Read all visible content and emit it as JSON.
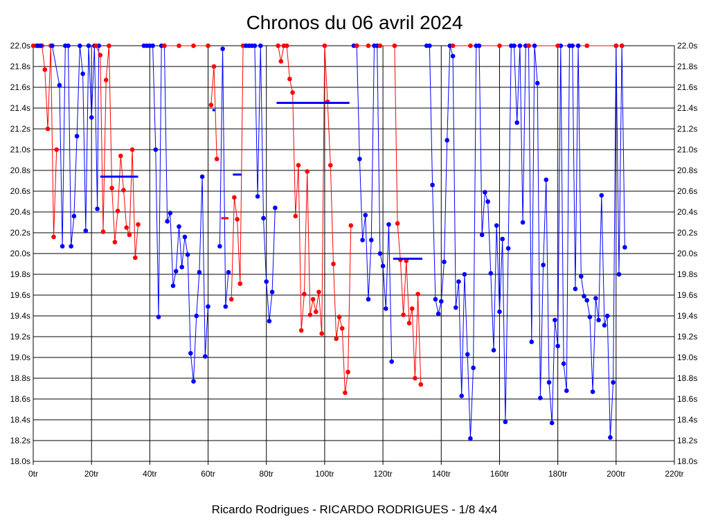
{
  "chart_data": {
    "type": "line",
    "title": "Chronos du 06 avril 2024",
    "subtitle": "Ricardo Rodrigues - RICARDO RODRIGUES - 1/8 4x4",
    "xlabel": "",
    "ylabel": "",
    "xlim": [
      0,
      220
    ],
    "ylim": [
      18.0,
      22.0
    ],
    "x_ticks": [
      {
        "value": 0,
        "label": "0tr"
      },
      {
        "value": 20,
        "label": "20tr"
      },
      {
        "value": 40,
        "label": "40tr"
      },
      {
        "value": 60,
        "label": "60tr"
      },
      {
        "value": 80,
        "label": "80tr"
      },
      {
        "value": 100,
        "label": "100tr"
      },
      {
        "value": 120,
        "label": "120tr"
      },
      {
        "value": 140,
        "label": "140tr"
      },
      {
        "value": 160,
        "label": "160tr"
      },
      {
        "value": 180,
        "label": "180tr"
      },
      {
        "value": 200,
        "label": "200tr"
      },
      {
        "value": 220,
        "label": "220tr"
      }
    ],
    "y_ticks": [
      {
        "value": 18.0,
        "label": "18.0s"
      },
      {
        "value": 18.2,
        "label": "18.2s"
      },
      {
        "value": 18.4,
        "label": "18.4s"
      },
      {
        "value": 18.6,
        "label": "18.6s"
      },
      {
        "value": 18.8,
        "label": "18.8s"
      },
      {
        "value": 19.0,
        "label": "19.0s"
      },
      {
        "value": 19.2,
        "label": "19.2s"
      },
      {
        "value": 19.4,
        "label": "19.4s"
      },
      {
        "value": 19.6,
        "label": "19.6s"
      },
      {
        "value": 19.8,
        "label": "19.8s"
      },
      {
        "value": 20.0,
        "label": "20.0s"
      },
      {
        "value": 20.2,
        "label": "20.2s"
      },
      {
        "value": 20.4,
        "label": "20.4s"
      },
      {
        "value": 20.6,
        "label": "20.6s"
      },
      {
        "value": 20.8,
        "label": "20.8s"
      },
      {
        "value": 21.0,
        "label": "21.0s"
      },
      {
        "value": 21.2,
        "label": "21.2s"
      },
      {
        "value": 21.4,
        "label": "21.4s"
      },
      {
        "value": 21.6,
        "label": "21.6s"
      },
      {
        "value": 21.8,
        "label": "21.8s"
      },
      {
        "value": 22.0,
        "label": "22.0s"
      }
    ],
    "grid": true,
    "colors": {
      "red": "#ff0000",
      "blue": "#0000ff",
      "grid": "#000000"
    },
    "segments": [
      {
        "color": "red",
        "points": [
          [
            0,
            22.0
          ],
          [
            1,
            22.0
          ],
          [
            2,
            22.0
          ],
          [
            3,
            22.0
          ],
          [
            4,
            21.77
          ],
          [
            5,
            21.2
          ],
          [
            6,
            22.0
          ],
          [
            7,
            20.16
          ],
          [
            8,
            21.0
          ]
        ]
      },
      {
        "color": "blue",
        "points": [
          [
            1.5,
            22.0
          ],
          [
            2.5,
            22.0
          ],
          [
            6.5,
            22.0
          ],
          [
            9,
            21.62
          ],
          [
            10,
            20.07
          ],
          [
            11,
            22.0
          ],
          [
            12,
            22.0
          ],
          [
            13,
            20.07
          ],
          [
            14,
            20.36
          ],
          [
            15,
            21.13
          ],
          [
            16,
            22.0
          ],
          [
            17,
            21.73
          ],
          [
            18,
            20.22
          ],
          [
            19,
            22.0
          ],
          [
            20,
            21.31
          ],
          [
            21,
            22.0
          ],
          [
            22,
            20.43
          ],
          [
            22.5,
            22.0
          ]
        ]
      },
      {
        "color": "red",
        "points": [
          [
            21.5,
            22.0
          ],
          [
            23,
            21.91
          ],
          [
            24,
            20.21
          ],
          [
            25,
            21.67
          ],
          [
            26,
            22.0
          ],
          [
            27,
            20.63
          ],
          [
            28,
            20.11
          ],
          [
            29,
            20.41
          ],
          [
            30,
            20.94
          ],
          [
            31,
            20.61
          ],
          [
            32,
            20.25
          ],
          [
            33,
            20.18
          ],
          [
            34,
            21.0
          ],
          [
            35,
            19.96
          ],
          [
            36,
            20.28
          ]
        ]
      },
      {
        "color": "blue",
        "points": [
          [
            38,
            22.0
          ],
          [
            39,
            22.0
          ],
          [
            40,
            22.0
          ],
          [
            41,
            22.0
          ],
          [
            42,
            21.0
          ],
          [
            43,
            19.39
          ],
          [
            44,
            22.0
          ],
          [
            45,
            22.0
          ],
          [
            46,
            20.31
          ],
          [
            47,
            20.39
          ],
          [
            48,
            19.69
          ],
          [
            49,
            19.83
          ],
          [
            50,
            20.26
          ],
          [
            51,
            19.87
          ],
          [
            52,
            20.16
          ],
          [
            53,
            19.99
          ],
          [
            54,
            19.04
          ],
          [
            55,
            18.77
          ],
          [
            56,
            19.4
          ],
          [
            57,
            19.82
          ],
          [
            58,
            20.74
          ],
          [
            59,
            19.01
          ],
          [
            60,
            19.49
          ]
        ]
      },
      {
        "color": "red",
        "points": [
          [
            45,
            22.0
          ],
          [
            50,
            22.0
          ],
          [
            55,
            22.0
          ],
          [
            60,
            22.0
          ]
        ]
      },
      {
        "color": "red",
        "points": [
          [
            61,
            21.43
          ],
          [
            62,
            21.8
          ],
          [
            63,
            20.91
          ]
        ]
      },
      {
        "color": "blue",
        "points": [
          [
            64,
            20.07
          ],
          [
            65,
            21.97
          ],
          [
            66,
            19.49
          ],
          [
            67,
            19.82
          ]
        ]
      },
      {
        "color": "red",
        "points": [
          [
            68,
            19.56
          ],
          [
            69,
            20.54
          ],
          [
            70,
            20.33
          ],
          [
            71,
            19.71
          ],
          [
            72,
            22.0
          ],
          [
            73,
            22.0
          ]
        ]
      },
      {
        "color": "blue",
        "points": [
          [
            73,
            22.0
          ],
          [
            74,
            22.0
          ],
          [
            75,
            22.0
          ],
          [
            76,
            22.0
          ],
          [
            77,
            20.55
          ],
          [
            78,
            22.0
          ],
          [
            79,
            20.34
          ],
          [
            80,
            19.73
          ],
          [
            81,
            19.35
          ],
          [
            82,
            19.63
          ],
          [
            83,
            20.44
          ]
        ]
      },
      {
        "color": "red",
        "points": [
          [
            84,
            22.0
          ],
          [
            85,
            21.85
          ],
          [
            86,
            22.0
          ],
          [
            87,
            22.0
          ],
          [
            88,
            21.68
          ],
          [
            89,
            21.55
          ],
          [
            90,
            20.36
          ],
          [
            91,
            20.85
          ],
          [
            92,
            19.26
          ],
          [
            93,
            19.61
          ],
          [
            94,
            20.79
          ],
          [
            95,
            19.41
          ],
          [
            96,
            19.56
          ],
          [
            97,
            19.44
          ],
          [
            98,
            19.63
          ],
          [
            99,
            19.23
          ],
          [
            100,
            22.0
          ],
          [
            101,
            21.46
          ],
          [
            102,
            20.85
          ],
          [
            103,
            19.9
          ],
          [
            104,
            19.18
          ],
          [
            105,
            19.39
          ],
          [
            106,
            19.28
          ],
          [
            107,
            18.66
          ],
          [
            108,
            18.86
          ],
          [
            109,
            20.27
          ]
        ]
      },
      {
        "color": "blue",
        "points": [
          [
            110,
            22.0
          ],
          [
            111,
            22.0
          ],
          [
            112,
            20.91
          ],
          [
            113,
            20.13
          ],
          [
            114,
            20.37
          ],
          [
            115,
            19.56
          ],
          [
            116,
            20.13
          ],
          [
            117,
            22.0
          ],
          [
            118,
            22.0
          ],
          [
            119,
            20.0
          ],
          [
            120,
            19.88
          ],
          [
            121,
            19.47
          ],
          [
            122,
            20.28
          ],
          [
            123,
            18.96
          ]
        ]
      },
      {
        "color": "red",
        "points": [
          [
            111,
            22.0
          ],
          [
            115,
            22.0
          ],
          [
            119,
            22.0
          ],
          [
            124,
            22.0
          ],
          [
            125,
            20.29
          ],
          [
            126,
            19.94
          ],
          [
            127,
            19.41
          ],
          [
            128,
            19.93
          ],
          [
            129,
            19.33
          ],
          [
            130,
            19.47
          ],
          [
            131,
            18.8
          ],
          [
            132,
            19.61
          ],
          [
            133,
            18.74
          ]
        ]
      },
      {
        "color": "blue",
        "points": [
          [
            135,
            22.0
          ],
          [
            136,
            22.0
          ],
          [
            137,
            20.66
          ],
          [
            138,
            19.56
          ],
          [
            139,
            19.42
          ],
          [
            140,
            19.54
          ],
          [
            141,
            19.92
          ],
          [
            142,
            21.09
          ],
          [
            143,
            22.0
          ],
          [
            144,
            21.9
          ],
          [
            145,
            19.48
          ],
          [
            146,
            19.73
          ],
          [
            147,
            18.63
          ],
          [
            148,
            19.8
          ],
          [
            149,
            19.03
          ],
          [
            150,
            18.22
          ],
          [
            151,
            18.9
          ],
          [
            152,
            22.0
          ],
          [
            153,
            22.0
          ],
          [
            154,
            20.18
          ],
          [
            155,
            20.59
          ],
          [
            156,
            20.5
          ],
          [
            157,
            19.81
          ],
          [
            158,
            19.07
          ],
          [
            159,
            20.27
          ],
          [
            160,
            19.44
          ],
          [
            161,
            20.14
          ],
          [
            162,
            18.38
          ],
          [
            163,
            20.05
          ],
          [
            164,
            22.0
          ],
          [
            165,
            22.0
          ],
          [
            166,
            21.26
          ],
          [
            167,
            22.0
          ],
          [
            168,
            20.3
          ],
          [
            169,
            22.0
          ],
          [
            170,
            22.0
          ],
          [
            171,
            19.15
          ],
          [
            172,
            22.0
          ],
          [
            173,
            21.64
          ],
          [
            174,
            18.61
          ],
          [
            175,
            19.89
          ],
          [
            176,
            20.71
          ],
          [
            177,
            18.76
          ],
          [
            178,
            18.37
          ],
          [
            179,
            19.36
          ],
          [
            180,
            19.11
          ],
          [
            181,
            22.0
          ],
          [
            182,
            18.94
          ],
          [
            183,
            18.68
          ],
          [
            184,
            22.0
          ],
          [
            185,
            22.0
          ],
          [
            186,
            19.66
          ],
          [
            187,
            22.0
          ],
          [
            188,
            19.78
          ],
          [
            189,
            19.59
          ],
          [
            190,
            19.55
          ],
          [
            191,
            19.39
          ],
          [
            192,
            18.67
          ],
          [
            193,
            19.57
          ],
          [
            194,
            19.36
          ],
          [
            195,
            20.56
          ],
          [
            196,
            19.31
          ],
          [
            197,
            19.4
          ],
          [
            198,
            18.23
          ],
          [
            199,
            18.76
          ],
          [
            200,
            22.0
          ],
          [
            201,
            19.8
          ],
          [
            202,
            22.0
          ],
          [
            203,
            20.06
          ]
        ]
      },
      {
        "color": "red",
        "points": [
          [
            144,
            22.0
          ],
          [
            150,
            22.0
          ],
          [
            160,
            22.0
          ],
          [
            170,
            22.0
          ],
          [
            180,
            22.0
          ],
          [
            190,
            22.0
          ],
          [
            200,
            22.0
          ],
          [
            202,
            22.0
          ]
        ]
      }
    ],
    "reference_lines": [
      {
        "color": "blue",
        "x_start": 23,
        "x_end": 36,
        "y": 20.74
      },
      {
        "color": "blue",
        "x_start": 61.5,
        "x_end": 62.5,
        "y": 21.38
      },
      {
        "color": "red",
        "x_start": 64.5,
        "x_end": 67,
        "y": 20.34
      },
      {
        "color": "blue",
        "x_start": 68.5,
        "x_end": 71.5,
        "y": 20.76
      },
      {
        "color": "blue",
        "x_start": 83.5,
        "x_end": 108.5,
        "y": 21.45
      },
      {
        "color": "blue",
        "x_start": 123.5,
        "x_end": 133.5,
        "y": 19.95
      }
    ]
  }
}
